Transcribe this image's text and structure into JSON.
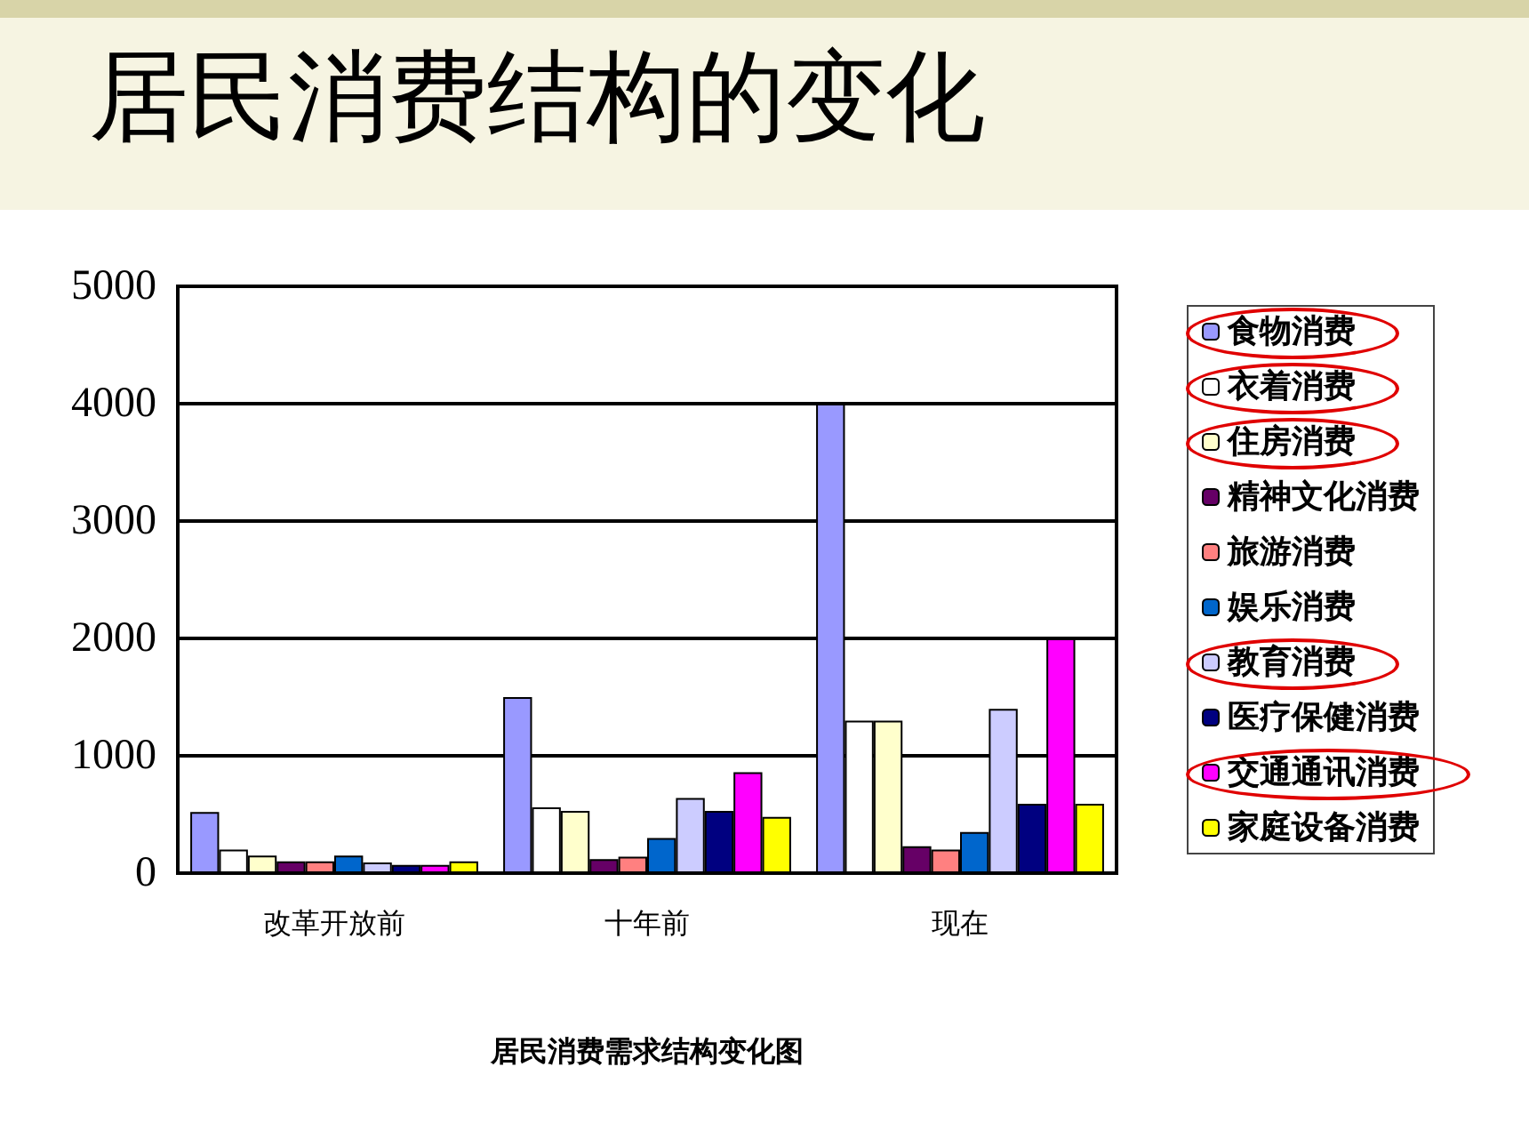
{
  "chart_data": {
    "type": "bar",
    "title": "居民消费结构的变化",
    "xlabel": "居民消费需求结构变化图",
    "categories": [
      "改革开放前",
      "十年前",
      "现在"
    ],
    "series": [
      {
        "name": "食物消费",
        "color": "#9999ff",
        "values": [
          520,
          1500,
          4000
        ]
      },
      {
        "name": "衣着消费",
        "color": "#ffffff",
        "values": [
          200,
          560,
          1300
        ]
      },
      {
        "name": "住房消费",
        "color": "#ffffcc",
        "values": [
          150,
          530,
          1300
        ]
      },
      {
        "name": "精神文化消费",
        "color": "#660066",
        "values": [
          100,
          120,
          230
        ]
      },
      {
        "name": "旅游消费",
        "color": "#ff8080",
        "values": [
          100,
          140,
          200
        ]
      },
      {
        "name": "娱乐消费",
        "color": "#0066cc",
        "values": [
          150,
          300,
          350
        ]
      },
      {
        "name": "教育消费",
        "color": "#ccccff",
        "values": [
          90,
          640,
          1400
        ]
      },
      {
        "name": "医疗保健消费",
        "color": "#000080",
        "values": [
          70,
          530,
          590
        ]
      },
      {
        "name": "交通通讯消费",
        "color": "#ff00ff",
        "values": [
          70,
          860,
          2000
        ]
      },
      {
        "name": "家庭设备消费",
        "color": "#ffff00",
        "values": [
          100,
          480,
          590
        ]
      }
    ],
    "ylim": [
      0,
      5000
    ],
    "yticks": [
      0,
      1000,
      2000,
      3000,
      4000,
      5000
    ],
    "grid": "y",
    "legend": "right"
  }
}
